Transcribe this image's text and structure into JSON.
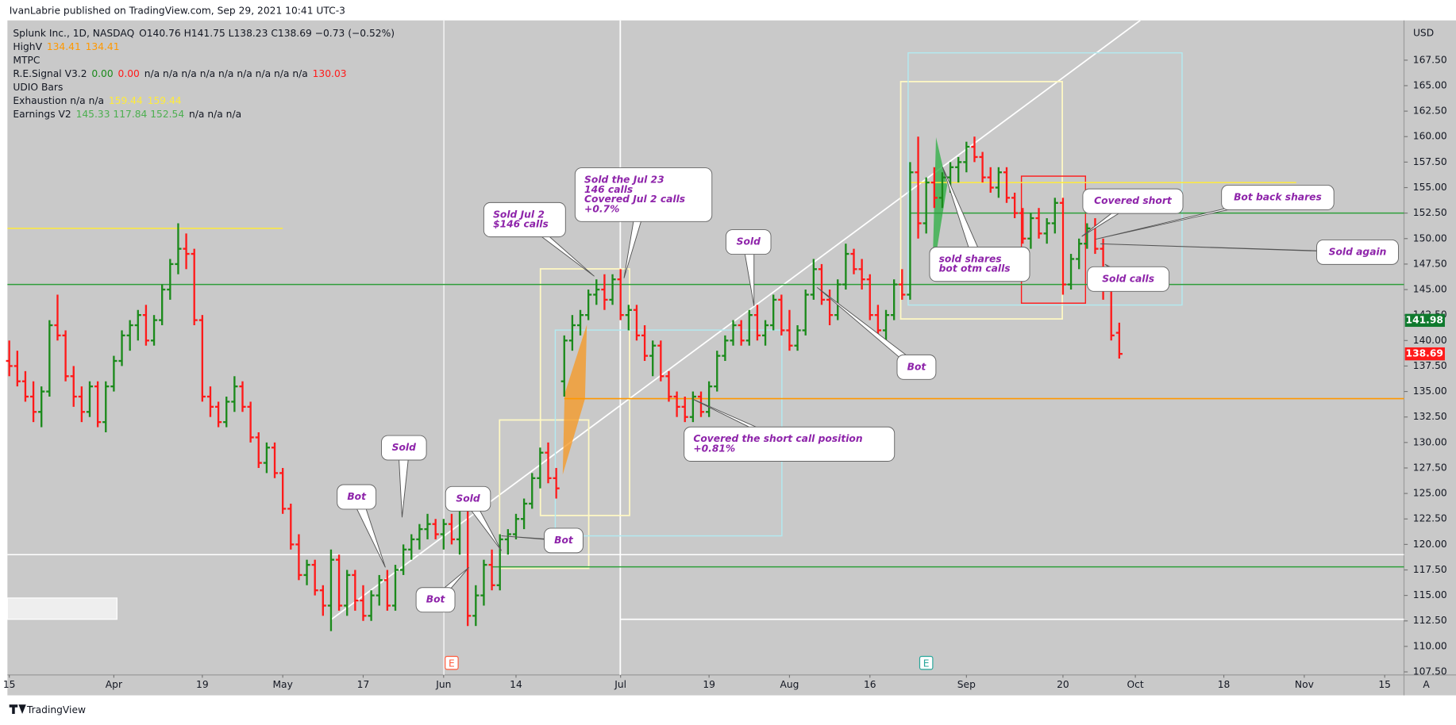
{
  "header": {
    "byline": "IvanLabrie published on TradingView.com, Sep 29, 2021 10:41 UTC-3",
    "brand": "TradingView"
  },
  "legend": [
    [
      {
        "text": "Splunk Inc., 1D, NASDAQ",
        "color": "#131722"
      },
      {
        "text": "O140.76 H141.75 L138.23 C138.69 −0.73 (−0.52%)",
        "color": "#131722"
      }
    ],
    [
      {
        "text": "HighV",
        "color": "#131722"
      },
      {
        "text": "134.41",
        "color": "#ff9800"
      },
      {
        "text": "134.41",
        "color": "#ff9800"
      }
    ],
    [
      {
        "text": "MTPC",
        "color": "#131722"
      }
    ],
    [
      {
        "text": "R.E.Signal V3.2",
        "color": "#131722"
      },
      {
        "text": "0.00",
        "color": "#1b8a1b"
      },
      {
        "text": "0.00",
        "color": "#ff1a1a"
      },
      {
        "text": "n/a n/a n/a n/a n/a n/a n/a n/a n/a",
        "color": "#131722"
      },
      {
        "text": "130.03",
        "color": "#ff1a1a"
      }
    ],
    [
      {
        "text": "UDIO Bars",
        "color": "#131722"
      }
    ],
    [
      {
        "text": "Exhaustion  n/a  n/a",
        "color": "#131722"
      },
      {
        "text": "159.44",
        "color": "#ffeb3b"
      },
      {
        "text": "159.44",
        "color": "#ffeb3b"
      }
    ],
    [
      {
        "text": "Earnings V2",
        "color": "#131722"
      },
      {
        "text": "145.33  117.84  152.54",
        "color": "#4caf50"
      },
      {
        "text": "n/a  n/a  n/a",
        "color": "#131722"
      }
    ]
  ],
  "chart_data": {
    "type": "ohlc",
    "currency": "USD",
    "corner": "A",
    "up_color": "#1b8a1b",
    "down_color": "#ff1a1a",
    "grid": false,
    "xlim": [
      -0.23,
      173.4
    ],
    "ylim": [
      107.2,
      171.4
    ],
    "xticks": [
      {
        "value": 0,
        "label": "15"
      },
      {
        "value": 13,
        "label": "Apr"
      },
      {
        "value": 24,
        "label": "19"
      },
      {
        "value": 34,
        "label": "May"
      },
      {
        "value": 44,
        "label": "17"
      },
      {
        "value": 54,
        "label": "Jun"
      },
      {
        "value": 63,
        "label": "14"
      },
      {
        "value": 76,
        "label": "Jul"
      },
      {
        "value": 87,
        "label": "19"
      },
      {
        "value": 97,
        "label": "Aug"
      },
      {
        "value": 107,
        "label": "16"
      },
      {
        "value": 119,
        "label": "Sep"
      },
      {
        "value": 131,
        "label": "20"
      },
      {
        "value": 140,
        "label": "Oct"
      },
      {
        "value": 151,
        "label": "18"
      },
      {
        "value": 161,
        "label": "Nov"
      },
      {
        "value": 171,
        "label": "15"
      }
    ],
    "yticks": [
      {
        "value": 107.5,
        "label": "107.50"
      },
      {
        "value": 110,
        "label": "110.00"
      },
      {
        "value": 112.5,
        "label": "112.50"
      },
      {
        "value": 115,
        "label": "115.00"
      },
      {
        "value": 117.5,
        "label": "117.50"
      },
      {
        "value": 120,
        "label": "120.00"
      },
      {
        "value": 122.5,
        "label": "122.50"
      },
      {
        "value": 125,
        "label": "125.00"
      },
      {
        "value": 127.5,
        "label": "127.50"
      },
      {
        "value": 130,
        "label": "130.00"
      },
      {
        "value": 132.5,
        "label": "132.50"
      },
      {
        "value": 135,
        "label": "135.00"
      },
      {
        "value": 137.5,
        "label": "137.50"
      },
      {
        "value": 140,
        "label": "140.00"
      },
      {
        "value": 142.5,
        "label": "142.50"
      },
      {
        "value": 145,
        "label": "145.00"
      },
      {
        "value": 147.5,
        "label": "147.50"
      },
      {
        "value": 150,
        "label": "150.00"
      },
      {
        "value": 152.5,
        "label": "152.50"
      },
      {
        "value": 155,
        "label": "155.00"
      },
      {
        "value": 157.5,
        "label": "157.50"
      },
      {
        "value": 160,
        "label": "160.00"
      },
      {
        "value": 162.5,
        "label": "162.50"
      },
      {
        "value": 165,
        "label": "165.00"
      },
      {
        "value": 167.5,
        "label": "167.50"
      }
    ],
    "x": [
      0,
      1,
      2,
      3,
      4,
      5,
      6,
      7,
      8,
      9,
      10,
      11,
      12,
      13,
      14,
      15,
      16,
      17,
      18,
      19,
      20,
      21,
      22,
      23,
      24,
      25,
      26,
      27,
      28,
      29,
      30,
      31,
      32,
      33,
      34,
      35,
      36,
      37,
      38,
      39,
      40,
      41,
      42,
      43,
      44,
      45,
      46,
      47,
      48,
      49,
      50,
      51,
      52,
      53,
      54,
      55,
      56,
      57,
      58,
      59,
      60,
      61,
      62,
      63,
      64,
      65,
      66,
      67,
      68,
      69,
      70,
      71,
      72,
      73,
      74,
      75,
      76,
      77,
      78,
      79,
      80,
      81,
      82,
      83,
      84,
      85,
      86,
      87,
      88,
      89,
      90,
      91,
      92,
      93,
      94,
      95,
      96,
      97,
      98,
      99,
      100,
      101,
      102,
      103,
      104,
      105,
      106,
      107,
      108,
      109,
      110,
      111,
      112,
      113,
      114,
      115,
      116,
      117,
      118,
      119,
      120,
      121,
      122,
      123,
      124,
      125,
      126,
      127,
      128,
      129,
      130,
      131,
      132,
      133,
      134,
      135,
      136,
      137,
      138
    ],
    "ohlc": [
      [
        138,
        140,
        136.5,
        137.5
      ],
      [
        137.5,
        139,
        135.5,
        136
      ],
      [
        136,
        137,
        134,
        134.5
      ],
      [
        134.5,
        136,
        132,
        133
      ],
      [
        133,
        135.5,
        131.5,
        135
      ],
      [
        135,
        142,
        134.5,
        141.5
      ],
      [
        141.5,
        144.5,
        140,
        140.5
      ],
      [
        140.5,
        141,
        136,
        136.5
      ],
      [
        136.5,
        137.5,
        133.5,
        134.5
      ],
      [
        134.5,
        135.5,
        132,
        133
      ],
      [
        133,
        136,
        132.5,
        135.5
      ],
      [
        135.5,
        136,
        131.5,
        132
      ],
      [
        132,
        136,
        131,
        135.5
      ],
      [
        135.5,
        138.5,
        135,
        138
      ],
      [
        138,
        141,
        137.5,
        140.5
      ],
      [
        140.5,
        142,
        139,
        141.5
      ],
      [
        141.5,
        143,
        140,
        142.5
      ],
      [
        142.5,
        143.5,
        139.5,
        140
      ],
      [
        140,
        142.5,
        139.5,
        142
      ],
      [
        142,
        145.5,
        141.5,
        145
      ],
      [
        145,
        148,
        144,
        147.5
      ],
      [
        147.5,
        151.5,
        146.5,
        149
      ],
      [
        149,
        150.5,
        147,
        148.5
      ],
      [
        148.5,
        149,
        141.5,
        142
      ],
      [
        142,
        142.5,
        134,
        134.5
      ],
      [
        134.5,
        135.5,
        132.5,
        133.5
      ],
      [
        133.5,
        134,
        131.5,
        132
      ],
      [
        132,
        134.5,
        131.5,
        134
      ],
      [
        134,
        136.5,
        133,
        135.5
      ],
      [
        135.5,
        136,
        133,
        133.5
      ],
      [
        133.5,
        134,
        130,
        130.5
      ],
      [
        130.5,
        131,
        127.5,
        128
      ],
      [
        128,
        130,
        127,
        129.5
      ],
      [
        129.5,
        130,
        126.5,
        127
      ],
      [
        127,
        127.5,
        123,
        123.5
      ],
      [
        123.5,
        124,
        119.5,
        120
      ],
      [
        120,
        121,
        116.5,
        117
      ],
      [
        117,
        118.5,
        116,
        118
      ],
      [
        118,
        118.5,
        115,
        115.5
      ],
      [
        115.5,
        116,
        113,
        114
      ],
      [
        114,
        119.5,
        111.5,
        118.5
      ],
      [
        118.5,
        119,
        113.5,
        114
      ],
      [
        114,
        117.5,
        113,
        117
      ],
      [
        117,
        117.5,
        113.5,
        114.5
      ],
      [
        114.5,
        116,
        112.5,
        113
      ],
      [
        113,
        115.5,
        112.5,
        115
      ],
      [
        115,
        117,
        114,
        116.5
      ],
      [
        116.5,
        117.5,
        113.5,
        114
      ],
      [
        114,
        118,
        113.5,
        117.5
      ],
      [
        117.5,
        120,
        117,
        119.5
      ],
      [
        119.5,
        121,
        118.5,
        120.5
      ],
      [
        120.5,
        122,
        119.5,
        121.5
      ],
      [
        121.5,
        123,
        120.5,
        122
      ],
      [
        122,
        122.5,
        120.5,
        121
      ],
      [
        121,
        122.5,
        119.5,
        122
      ],
      [
        122,
        123,
        120,
        120.5
      ],
      [
        120.5,
        124,
        119,
        123.5
      ],
      [
        123.5,
        124,
        112,
        113
      ],
      [
        113,
        116,
        112,
        115
      ],
      [
        115,
        118.5,
        114,
        118
      ],
      [
        118,
        119.5,
        115.5,
        116
      ],
      [
        116,
        121,
        115.5,
        120.5
      ],
      [
        120.5,
        121.5,
        119,
        121
      ],
      [
        121,
        123,
        120.5,
        122.5
      ],
      [
        122.5,
        124.5,
        121.5,
        124
      ],
      [
        124,
        127,
        123.5,
        126.5
      ],
      [
        126.5,
        129.5,
        125.5,
        129
      ],
      [
        129,
        130,
        126,
        126.5
      ],
      [
        126.5,
        127.5,
        124.5,
        125.5
      ],
      [
        136,
        140.5,
        134.5,
        140
      ],
      [
        140,
        142.5,
        139,
        141.5
      ],
      [
        141.5,
        143,
        140.5,
        142.5
      ],
      [
        142.5,
        145,
        142,
        144.5
      ],
      [
        144.5,
        146,
        143.5,
        145
      ],
      [
        145,
        146.5,
        143,
        144
      ],
      [
        144,
        146.5,
        143.5,
        146
      ],
      [
        146,
        147,
        142,
        142.5
      ],
      [
        142.5,
        143.5,
        141,
        143
      ],
      [
        143,
        143.5,
        140,
        140.5
      ],
      [
        140.5,
        141.5,
        138,
        138.5
      ],
      [
        138.5,
        140,
        136.5,
        139.5
      ],
      [
        139.5,
        140,
        136,
        136.5
      ],
      [
        136.5,
        137,
        134,
        134.5
      ],
      [
        134.5,
        135,
        132.5,
        133.5
      ],
      [
        133.5,
        134.5,
        132,
        132.5
      ],
      [
        132.5,
        135,
        132,
        134.5
      ],
      [
        134.5,
        135,
        132.5,
        133
      ],
      [
        133,
        136,
        132.5,
        135.5
      ],
      [
        135.5,
        139,
        135,
        138.5
      ],
      [
        138.5,
        140.5,
        138,
        140
      ],
      [
        140,
        142,
        139.5,
        141.5
      ],
      [
        141.5,
        142,
        139.5,
        140
      ],
      [
        140,
        143,
        139.5,
        142.5
      ],
      [
        142.5,
        143.5,
        140,
        140.5
      ],
      [
        140.5,
        142,
        139.5,
        141.5
      ],
      [
        141.5,
        144.5,
        141,
        144
      ],
      [
        144,
        144.5,
        140.5,
        141
      ],
      [
        141,
        143,
        139,
        139.5
      ],
      [
        139.5,
        141.5,
        139,
        141
      ],
      [
        141,
        145,
        140.5,
        144.5
      ],
      [
        144.5,
        148,
        144,
        147
      ],
      [
        147,
        147.5,
        143.5,
        144
      ],
      [
        144,
        145,
        141.5,
        142.5
      ],
      [
        142.5,
        146,
        142,
        145.5
      ],
      [
        145.5,
        149.5,
        145,
        148.5
      ],
      [
        148.5,
        149,
        146.5,
        147
      ],
      [
        147,
        148,
        145,
        146
      ],
      [
        146,
        146.5,
        142,
        142.5
      ],
      [
        142.5,
        143.5,
        140.5,
        141
      ],
      [
        141,
        143,
        140,
        142.5
      ],
      [
        142.5,
        146,
        142,
        145.5
      ],
      [
        145.5,
        147,
        144,
        144.5
      ],
      [
        144.5,
        157.5,
        144,
        156.5
      ],
      [
        156.5,
        160,
        150,
        151.5
      ],
      [
        151.5,
        156,
        150.5,
        155.5
      ],
      [
        155.5,
        157,
        153,
        154
      ],
      [
        154,
        156.5,
        153,
        156
      ],
      [
        156,
        157.5,
        154.5,
        157
      ],
      [
        157,
        158,
        155.5,
        157.5
      ],
      [
        157.5,
        159.5,
        156.5,
        159
      ],
      [
        159,
        160,
        157.5,
        158
      ],
      [
        158,
        158.5,
        155.5,
        156
      ],
      [
        156,
        157,
        154.5,
        155
      ],
      [
        155,
        157,
        154,
        156.5
      ],
      [
        156.5,
        157,
        153.5,
        154
      ],
      [
        154,
        154.5,
        152,
        152.5
      ],
      [
        152.5,
        153,
        149.5,
        150
      ],
      [
        150,
        152.5,
        149,
        152
      ],
      [
        152,
        153,
        150,
        150.5
      ],
      [
        150.5,
        152,
        149.5,
        151.5
      ],
      [
        151.5,
        154,
        150.5,
        153.5
      ],
      [
        153.5,
        154,
        144.5,
        145.5
      ],
      [
        145.5,
        148.5,
        145,
        148
      ],
      [
        148,
        150,
        147,
        149.5
      ],
      [
        149.5,
        151.5,
        149,
        151
      ],
      [
        151,
        152,
        148.5,
        149
      ],
      [
        149,
        150,
        144,
        145
      ],
      [
        145,
        146,
        140,
        140.5
      ],
      [
        140.76,
        141.75,
        138.23,
        138.69
      ]
    ],
    "levels": [
      {
        "value": 151,
        "color": "#ffeb3b",
        "from": -0.23,
        "to": 34
      },
      {
        "value": 145.5,
        "color": "#2e9e3a",
        "from": -0.23,
        "to": 173.4
      },
      {
        "value": 152.5,
        "color": "#2e9e3a",
        "from": 112,
        "to": 173.4
      },
      {
        "value": 155.5,
        "color": "#ffeb3b",
        "from": 112,
        "to": 160
      },
      {
        "value": 134.3,
        "color": "#ff9800",
        "from": 69,
        "to": 173.4
      },
      {
        "value": 117.8,
        "color": "#2e9e3a",
        "from": 60,
        "to": 173.4
      },
      {
        "value": 119,
        "color": "#ffffff",
        "from": -0.23,
        "to": 173.4
      }
    ],
    "price_labels": [
      {
        "value": 141.98,
        "color": "#0f7a2e"
      },
      {
        "value": 138.69,
        "color": "#ff1a1a"
      }
    ],
    "events": [
      {
        "x": 55,
        "label": "E",
        "color": "#ff5a3c"
      },
      {
        "x": 114,
        "label": "E",
        "color": "#26a69a"
      }
    ],
    "annotations": [
      [
        "Bot"
      ],
      [
        "Sold"
      ],
      [
        "Sold"
      ],
      [
        "Bot"
      ],
      [
        "Bot"
      ],
      [
        "Sold Jul 2",
        "$146 calls"
      ],
      [
        "Sold the Jul 23",
        "146 calls",
        "Covered Jul 2 calls",
        "+0.7%"
      ],
      [
        "Sold"
      ],
      [
        "Covered the short call position",
        "+0.81%"
      ],
      [
        "Bot"
      ],
      [
        "sold shares",
        "bot otm calls"
      ],
      [
        "Covered short"
      ],
      [
        "Bot back shares"
      ],
      [
        "Sold again"
      ],
      [
        "Sold calls"
      ]
    ]
  }
}
